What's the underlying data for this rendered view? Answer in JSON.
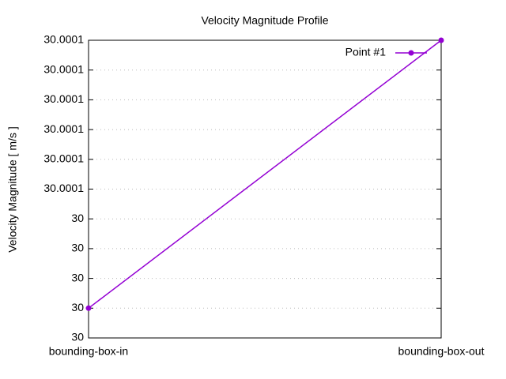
{
  "chart_data": {
    "type": "line",
    "title": "Velocity Magnitude Profile",
    "y_label": "Velocity Magnitude [ m/s ]",
    "categories": [
      "bounding-box-in",
      "bounding-box-out"
    ],
    "series": [
      {
        "name": "Point #1",
        "color": "#9400d3",
        "values": [
          30.00001,
          30.0001
        ]
      }
    ],
    "ylim": [
      30,
      30.0001
    ],
    "yticks": [
      30,
      {
        "value": 30.00001,
        "label": "30"
      },
      {
        "value": 30.00002,
        "label": "30"
      },
      {
        "value": 30.00003,
        "label": "30"
      },
      {
        "value": 30.00004,
        "label": "30"
      },
      {
        "value": 30.00005,
        "label": "30.0001"
      },
      {
        "value": 30.00006,
        "label": "30.0001"
      },
      {
        "value": 30.00007,
        "label": "30.0001"
      },
      {
        "value": 30.00008,
        "label": "30.0001"
      },
      {
        "value": 30.00009,
        "label": "30.0001"
      },
      30.0001
    ],
    "grid": true,
    "legend": "top-right"
  }
}
